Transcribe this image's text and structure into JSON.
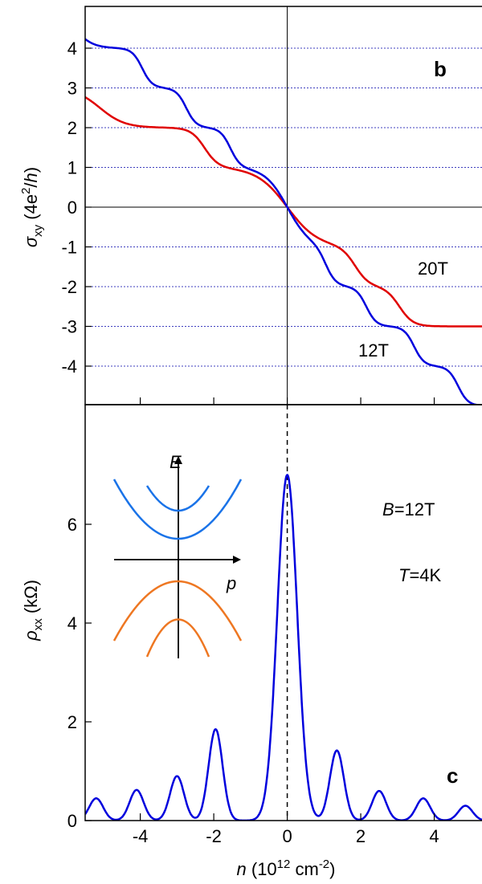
{
  "chart_data": [
    {
      "panel": "b",
      "type": "line",
      "ylabel_main": "σ",
      "ylabel_sub": "xy",
      "ylabel_units_pre": "(4e",
      "ylabel_units_sup": "2",
      "ylabel_units_post": "/h)",
      "xlim": [
        -5.5,
        5.3
      ],
      "ylim": [
        -5,
        5
      ],
      "yticks": [
        -4,
        -3,
        -2,
        -1,
        0,
        1,
        2,
        3,
        4
      ],
      "ytick_labels": [
        "-4",
        "-3",
        "-2",
        "-1",
        "0",
        "1",
        "2",
        "3",
        "4"
      ],
      "grid": "dashed at integer y",
      "series": [
        {
          "name": "12T",
          "color": "#0000dd",
          "plateaus": [
            [
              4,
              -4.7
            ],
            [
              3,
              -3.6
            ],
            [
              2,
              -2.4
            ],
            [
              1,
              -1.2
            ],
            [
              -1,
              0.3
            ],
            [
              -2,
              1.4
            ],
            [
              -3,
              2.5
            ],
            [
              -4,
              3.8
            ]
          ],
          "step_width": 0.55,
          "zero_crossing": 0.0
        },
        {
          "name": "20T",
          "color": "#e00000",
          "plateaus": [
            [
              2,
              -4.0
            ],
            [
              1,
              -1.9
            ],
            [
              -1,
              0.4
            ],
            [
              -2,
              2.2
            ]
          ],
          "step_width": 0.75,
          "zero_crossing": 0.0
        }
      ],
      "annotations": [
        "20T",
        "12T",
        "b"
      ]
    },
    {
      "panel": "c",
      "type": "line",
      "xlabel_pre": "n",
      "xlabel_mid": "(10",
      "xlabel_sup1": "12",
      "xlabel_mid2": "cm",
      "xlabel_sup2": "-2",
      "xlabel_post": ")",
      "ylabel_main": "ρ",
      "ylabel_sub": "xx",
      "ylabel_units": "(kΩ)",
      "xlim": [
        -5.5,
        5.3
      ],
      "ylim": [
        0,
        8
      ],
      "xticks": [
        -4,
        -2,
        0,
        2,
        4
      ],
      "xtick_labels": [
        "-4",
        "-2",
        "0",
        "2",
        "4"
      ],
      "yticks": [
        0,
        2,
        4,
        6
      ],
      "ytick_labels": [
        "0",
        "2",
        "4",
        "6"
      ],
      "series": [
        {
          "name": "B=12T",
          "color": "#0000dd",
          "baseline": 0.05,
          "peaks": [
            [
              -5.2,
              0.45
            ],
            [
              -4.1,
              0.62
            ],
            [
              -3.0,
              0.9
            ],
            [
              -1.95,
              1.85
            ],
            [
              0.0,
              7.0
            ],
            [
              1.35,
              1.42
            ],
            [
              2.5,
              0.6
            ],
            [
              3.7,
              0.45
            ],
            [
              4.85,
              0.3
            ]
          ]
        }
      ],
      "annotations": {
        "B": "B",
        "B_val": "=12T",
        "T": "T",
        "T_val": "=4K",
        "letter": "c"
      },
      "inset": {
        "E_label": "E",
        "p_label": "p",
        "upper_color": "#1a73e8",
        "lower_color": "#ee7722"
      }
    }
  ]
}
